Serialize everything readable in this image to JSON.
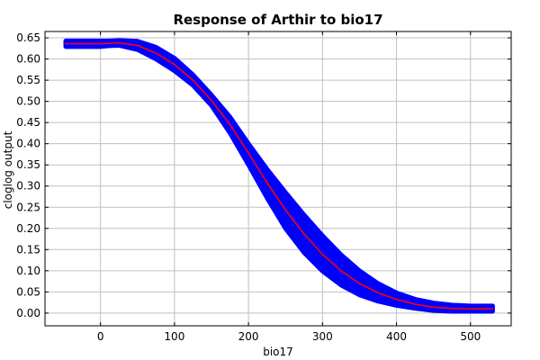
{
  "chart_data": {
    "type": "line",
    "title": "Response of Arthir to bio17",
    "xlabel": "bio17",
    "ylabel": "cloglog output",
    "xlim": [
      -75,
      555
    ],
    "ylim": [
      -0.03,
      0.665
    ],
    "xticks": [
      0,
      100,
      200,
      300,
      400,
      500
    ],
    "yticks": [
      0.0,
      0.05,
      0.1,
      0.15,
      0.2,
      0.25,
      0.3,
      0.35,
      0.4,
      0.45,
      0.5,
      0.55,
      0.6,
      0.65
    ],
    "grid": true,
    "colors": {
      "mean": "#ff0000",
      "band": "#0000ff",
      "grid": "#c0c0c0"
    },
    "series": [
      {
        "role": "mean",
        "x": [
          -47,
          0,
          10,
          25,
          50,
          75,
          100,
          125,
          150,
          175,
          200,
          225,
          250,
          275,
          300,
          325,
          350,
          375,
          400,
          425,
          450,
          475,
          500,
          530
        ],
        "y": [
          0.636,
          0.636,
          0.637,
          0.638,
          0.632,
          0.614,
          0.587,
          0.55,
          0.502,
          0.445,
          0.378,
          0.308,
          0.244,
          0.187,
          0.139,
          0.1,
          0.07,
          0.048,
          0.032,
          0.021,
          0.014,
          0.011,
          0.01,
          0.01
        ]
      },
      {
        "role": "upper",
        "x": [
          -47,
          0,
          10,
          25,
          50,
          75,
          100,
          125,
          150,
          175,
          200,
          225,
          250,
          275,
          300,
          325,
          350,
          375,
          400,
          425,
          450,
          475,
          500,
          530
        ],
        "y": [
          0.643,
          0.643,
          0.643,
          0.644,
          0.642,
          0.628,
          0.602,
          0.563,
          0.515,
          0.463,
          0.4,
          0.34,
          0.285,
          0.232,
          0.183,
          0.138,
          0.1,
          0.07,
          0.048,
          0.033,
          0.024,
          0.019,
          0.017,
          0.017
        ]
      },
      {
        "role": "lower",
        "x": [
          -47,
          0,
          10,
          25,
          50,
          75,
          100,
          125,
          150,
          175,
          200,
          225,
          250,
          275,
          300,
          325,
          350,
          375,
          400,
          425,
          450,
          475,
          500,
          530
        ],
        "y": [
          0.629,
          0.629,
          0.631,
          0.632,
          0.622,
          0.6,
          0.572,
          0.538,
          0.49,
          0.425,
          0.35,
          0.272,
          0.2,
          0.143,
          0.099,
          0.066,
          0.043,
          0.028,
          0.018,
          0.011,
          0.006,
          0.004,
          0.004,
          0.004
        ]
      }
    ]
  }
}
